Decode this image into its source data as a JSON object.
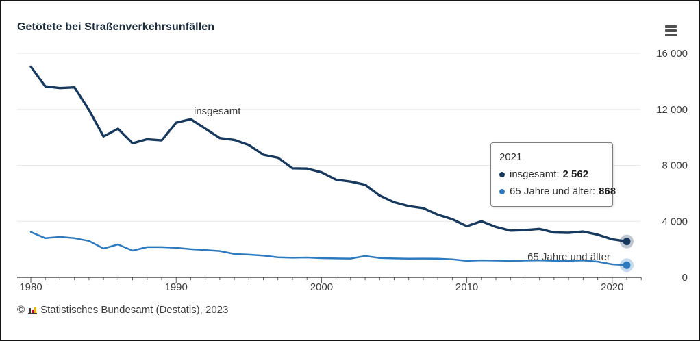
{
  "header": {
    "title": "Getötete bei Straßenverkehrsunfällen"
  },
  "tooltip": {
    "year": "2021",
    "rows": [
      {
        "label": "insgesamt:",
        "value": "2 562",
        "color": "#18395e"
      },
      {
        "label": "65 Jahre und älter:",
        "value": "868",
        "color": "#2d7abf"
      }
    ]
  },
  "footer": {
    "copyright": "©",
    "source": "Statistisches Bundesamt (Destatis), 2023",
    "logo_icon": "destatis-bar-chart-logo"
  },
  "icons": {
    "menu": "hamburger-menu-icon"
  },
  "chart_data": {
    "type": "line",
    "title": "Getötete bei Straßenverkehrsunfällen",
    "x": [
      1980,
      1981,
      1982,
      1983,
      1984,
      1985,
      1986,
      1987,
      1988,
      1989,
      1990,
      1991,
      1992,
      1993,
      1994,
      1995,
      1996,
      1997,
      1998,
      1999,
      2000,
      2001,
      2002,
      2003,
      2004,
      2005,
      2006,
      2007,
      2008,
      2009,
      2010,
      2011,
      2012,
      2013,
      2014,
      2015,
      2016,
      2017,
      2018,
      2019,
      2020,
      2021
    ],
    "series": [
      {
        "name": "insgesamt",
        "color": "#18395e",
        "values": [
          15050,
          13641,
          13518,
          13566,
          11964,
          10070,
          10620,
          9577,
          9862,
          9779,
          11046,
          11300,
          10631,
          9949,
          9814,
          9454,
          8758,
          8549,
          7792,
          7772,
          7503,
          6977,
          6842,
          6613,
          5842,
          5361,
          5091,
          4949,
          4477,
          4152,
          3648,
          4009,
          3600,
          3339,
          3377,
          3459,
          3206,
          3180,
          3275,
          3046,
          2719,
          2562
        ]
      },
      {
        "name": "65 Jahre und älter",
        "color": "#2d7abf",
        "values": [
          3240,
          2800,
          2890,
          2800,
          2600,
          2060,
          2350,
          1910,
          2160,
          2160,
          2110,
          2010,
          1950,
          1880,
          1670,
          1620,
          1550,
          1430,
          1400,
          1420,
          1370,
          1350,
          1340,
          1520,
          1380,
          1350,
          1330,
          1340,
          1330,
          1280,
          1180,
          1220,
          1200,
          1180,
          1200,
          1220,
          1190,
          1180,
          1210,
          1120,
          930,
          868
        ]
      }
    ],
    "xlabel": "",
    "ylabel": "",
    "xlim": [
      1979,
      2022
    ],
    "ylim": [
      0,
      16000
    ],
    "xticks_labeled": [
      1980,
      1990,
      2000,
      2010,
      2020
    ],
    "yticks": [
      0,
      4000,
      8000,
      12000,
      16000
    ],
    "ytick_labels": [
      "0",
      "4 000",
      "8 000",
      "12 000",
      "16 000"
    ],
    "grid": "horizontal",
    "grid_color": "#e8e8e8",
    "axis_color": "#4f4f4f",
    "tick_label_color": "#3c3c3c",
    "legend": "inline-labels-and-end-markers",
    "annotations": [
      {
        "text": "insgesamt",
        "x": 1991.5,
        "y": 11600
      },
      {
        "text": "65 Jahre und älter",
        "x": 2014.5,
        "y": 1550
      }
    ],
    "last_point_labels": {
      "year": 2021,
      "insgesamt": 2562,
      "65_und_aelter": 868
    }
  }
}
